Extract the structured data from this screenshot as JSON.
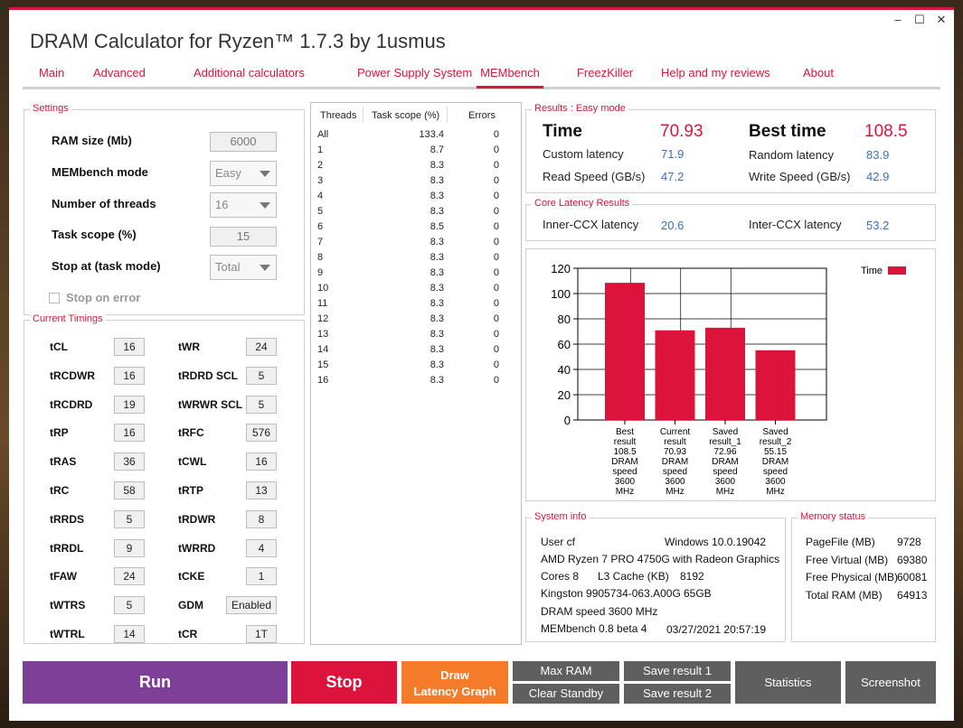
{
  "window": {
    "title": "DRAM Calculator for Ryzen™ 1.7.3 by 1usmus",
    "min": "–",
    "max": "☐",
    "close": "✕"
  },
  "tabs": [
    "Main",
    "Advanced",
    "Additional calculators",
    "Power Supply System",
    "MEMbench",
    "FreezKiller",
    "Help and my reviews",
    "About"
  ],
  "settings": {
    "title": "Settings",
    "ram_size_label": "RAM size (Mb)",
    "ram_size": "6000",
    "mode_label": "MEMbench mode",
    "mode": "Easy",
    "threads_label": "Number of threads",
    "threads": "16",
    "scope_label": "Task scope (%)",
    "scope": "15",
    "stop_label": "Stop at (task mode)",
    "stop": "Total",
    "stop_on_error": "Stop on error"
  },
  "timings": {
    "title": "Current Timings",
    "left": [
      {
        "name": "tCL",
        "value": "16"
      },
      {
        "name": "tRCDWR",
        "value": "16"
      },
      {
        "name": "tRCDRD",
        "value": "19"
      },
      {
        "name": "tRP",
        "value": "16"
      },
      {
        "name": "tRAS",
        "value": "36"
      },
      {
        "name": "tRC",
        "value": "58"
      },
      {
        "name": "tRRDS",
        "value": "5"
      },
      {
        "name": "tRRDL",
        "value": "9"
      },
      {
        "name": "tFAW",
        "value": "24"
      },
      {
        "name": "tWTRS",
        "value": "5"
      },
      {
        "name": "tWTRL",
        "value": "14"
      }
    ],
    "right": [
      {
        "name": "tWR",
        "value": "24"
      },
      {
        "name": "tRDRD SCL",
        "value": "5"
      },
      {
        "name": "tWRWR SCL",
        "value": "5"
      },
      {
        "name": "tRFC",
        "value": "576"
      },
      {
        "name": "tCWL",
        "value": "16"
      },
      {
        "name": "tRTP",
        "value": "13"
      },
      {
        "name": "tRDWR",
        "value": "8"
      },
      {
        "name": "tWRRD",
        "value": "4"
      },
      {
        "name": "tCKE",
        "value": "1"
      },
      {
        "name": "GDM",
        "value": "Enabled"
      },
      {
        "name": "tCR",
        "value": "1T"
      }
    ]
  },
  "threads_table": {
    "headers": [
      "Threads",
      "Task scope (%)",
      "Errors"
    ],
    "rows": [
      [
        "All",
        "133.4",
        "0"
      ],
      [
        "1",
        "8.7",
        "0"
      ],
      [
        "2",
        "8.3",
        "0"
      ],
      [
        "3",
        "8.3",
        "0"
      ],
      [
        "4",
        "8.3",
        "0"
      ],
      [
        "5",
        "8.3",
        "0"
      ],
      [
        "6",
        "8.5",
        "0"
      ],
      [
        "7",
        "8.3",
        "0"
      ],
      [
        "8",
        "8.3",
        "0"
      ],
      [
        "9",
        "8.3",
        "0"
      ],
      [
        "10",
        "8.3",
        "0"
      ],
      [
        "11",
        "8.3",
        "0"
      ],
      [
        "12",
        "8.3",
        "0"
      ],
      [
        "13",
        "8.3",
        "0"
      ],
      [
        "14",
        "8.3",
        "0"
      ],
      [
        "15",
        "8.3",
        "0"
      ],
      [
        "16",
        "8.3",
        "0"
      ]
    ]
  },
  "results": {
    "title": "Results : Easy mode",
    "time_label": "Time",
    "time": "70.93",
    "best_label": "Best time",
    "best": "108.5",
    "custom_label": "Custom latency",
    "custom": "71.9",
    "random_label": "Random latency",
    "random": "83.9",
    "read_label": "Read Speed (GB/s)",
    "read": "47.2",
    "write_label": "Write Speed (GB/s)",
    "write": "42.9"
  },
  "core_latency": {
    "title": "Core Latency Results",
    "inner_label": "Inner-CCX latency",
    "inner": "20.6",
    "inter_label": "Inter-CCX latency",
    "inter": "53.2"
  },
  "chart_data": {
    "type": "bar",
    "categories": [
      [
        "Best",
        "result",
        "108.5",
        "DRAM",
        "speed",
        "3600",
        "MHz"
      ],
      [
        "Current",
        "result",
        "70.93",
        "DRAM",
        "speed",
        "3600",
        "MHz"
      ],
      [
        "Saved",
        "result_1",
        "72.96",
        "DRAM",
        "speed",
        "3600",
        "MHz"
      ],
      [
        "Saved",
        "result_2",
        "55.15",
        "DRAM",
        "speed",
        "3600",
        "MHz"
      ]
    ],
    "series": [
      {
        "name": "Time",
        "values": [
          108.5,
          70.93,
          72.96,
          55.15
        ]
      }
    ],
    "ylim": [
      0,
      120
    ],
    "yticks": [
      "0",
      "20",
      "40",
      "60",
      "80",
      "100",
      "120"
    ],
    "grid": true,
    "legend": "top-right",
    "color": "#dc143c"
  },
  "system_info": {
    "title": "System info",
    "user": "User cf",
    "os": "Windows 10.0.19042",
    "cpu": "AMD Ryzen 7 PRO 4750G with Radeon Graphics",
    "cores": "Cores 8",
    "l3_label": "L3 Cache (KB)",
    "l3": "8192",
    "memory": "Kingston 9905734-063.A00G",
    "mem_size": "65GB",
    "dram_speed": "DRAM speed 3600 MHz",
    "version": "MEMbench 0.8 beta 4",
    "datetime": "03/27/2021 20:57:19"
  },
  "memory_status": {
    "title": "Memory status",
    "rows": [
      {
        "label": "PageFile (MB)",
        "value": "9728"
      },
      {
        "label": "Free Virtual (MB)",
        "value": "69380"
      },
      {
        "label": "Free Physical (MB)",
        "value": "60081"
      },
      {
        "label": "Total RAM (MB)",
        "value": "64913"
      }
    ]
  },
  "buttons": {
    "run": "Run",
    "stop": "Stop",
    "draw1": "Draw",
    "draw2": "Latency Graph",
    "max_ram": "Max RAM",
    "clear_standby": "Clear Standby",
    "save1": "Save result 1",
    "save2": "Save result 2",
    "statistics": "Statistics",
    "screenshot": "Screenshot"
  },
  "colors": {
    "accent": "#d9163c",
    "run": "#7e3f98",
    "draw": "#f47b2a",
    "gray": "#5f5f5f",
    "value_blue": "#3b6fc4"
  }
}
